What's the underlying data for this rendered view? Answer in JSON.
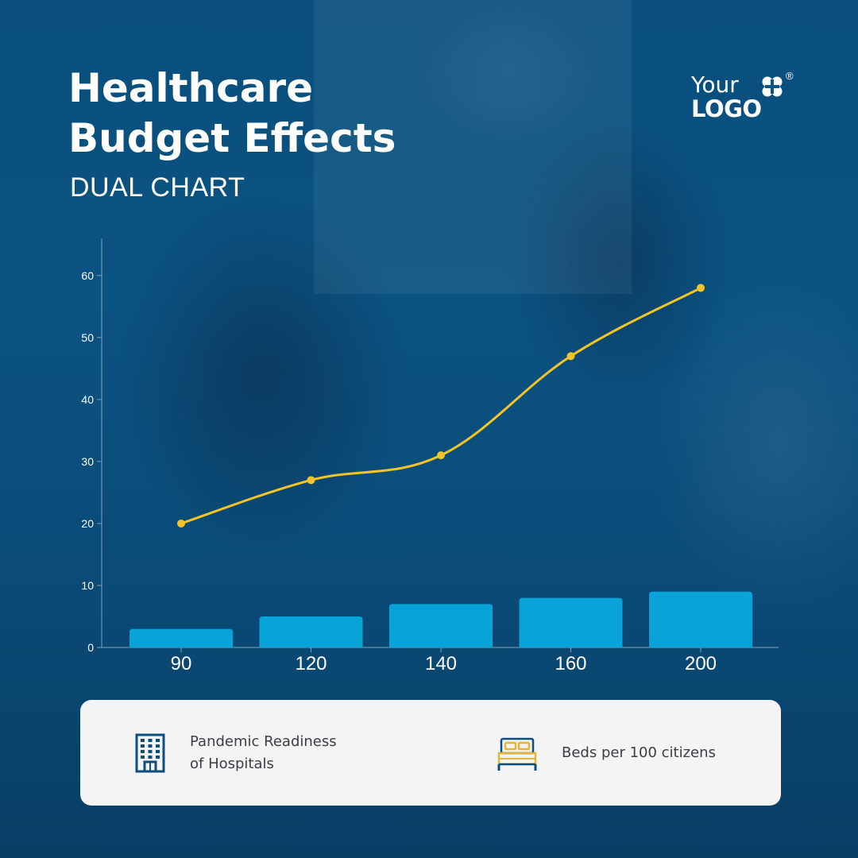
{
  "header": {
    "title_lines": [
      "Healthcare",
      "Budget Effects"
    ],
    "subtitle": "DUAL CHART"
  },
  "logo": {
    "line1": "Your",
    "line2": "LOGO",
    "registered": "®"
  },
  "colors": {
    "background": "#0b5382",
    "bar": "#08a3d8",
    "line": "#f2c428",
    "axis": "#7fa3bf",
    "legend_bg": "#f4f4f4",
    "legend_text": "#3a3f45",
    "icon_blue": "#0c4f7e",
    "icon_gold": "#e8b533"
  },
  "chart_data": {
    "type": "bar",
    "categories": [
      "90",
      "120",
      "140",
      "160",
      "200"
    ],
    "series": [
      {
        "name": "Beds per 100 citizens",
        "type": "bar",
        "values": [
          3,
          5,
          7,
          8,
          9
        ]
      },
      {
        "name": "Pandemic Readiness of Hospitals",
        "type": "line",
        "smooth": true,
        "values": [
          20,
          27,
          31,
          47,
          58
        ]
      }
    ],
    "y_ticks": [
      0,
      10,
      20,
      30,
      40,
      50,
      60
    ],
    "ylim": [
      0,
      66
    ],
    "grid": false,
    "legend_position": "bottom"
  },
  "legend": {
    "items": [
      {
        "icon": "hospital-building-icon",
        "lines": [
          "Pandemic Readiness",
          "of Hospitals"
        ]
      },
      {
        "icon": "bed-icon",
        "lines": [
          "Beds per 100 citizens"
        ]
      }
    ]
  }
}
